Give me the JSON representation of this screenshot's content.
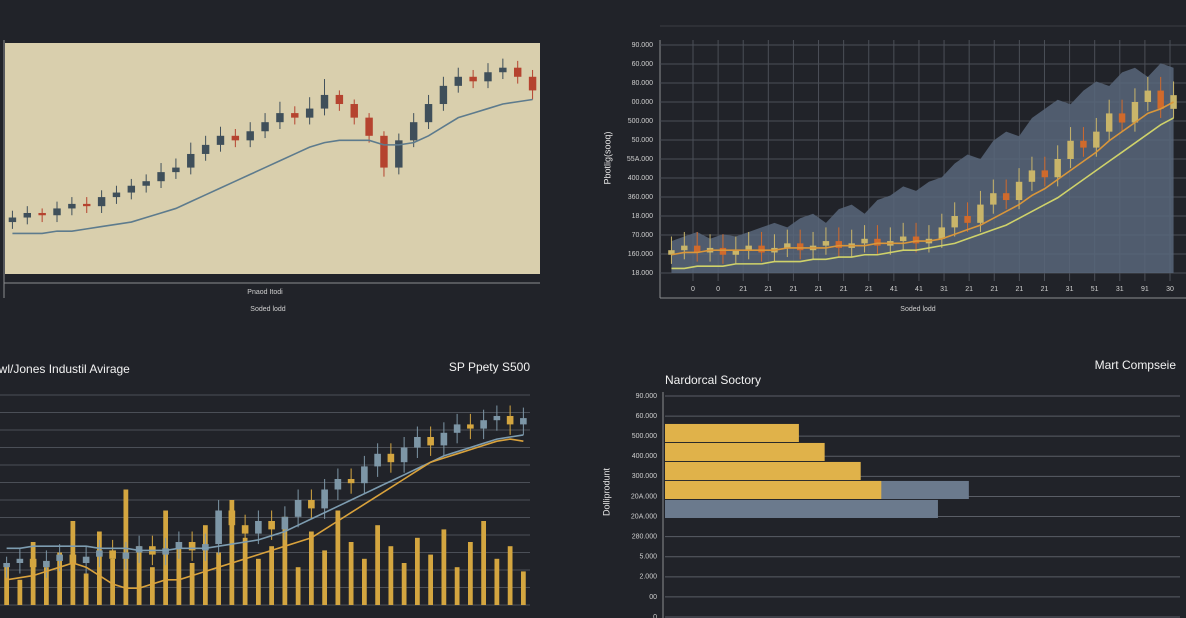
{
  "chart_data": [
    {
      "type": "candlestick",
      "xlabel": "Pnaod Itodi",
      "x_sublabel": "Soded lodd",
      "ylim": [
        0,
        100
      ],
      "background": "#d9cfad",
      "up_color": "#3f4f5a",
      "down_color": "#b5432f",
      "open": [
        22,
        24,
        26,
        25,
        28,
        30,
        29,
        33,
        35,
        38,
        40,
        44,
        46,
        52,
        56,
        60,
        58,
        62,
        66,
        70,
        68,
        72,
        78,
        74,
        68,
        60,
        46,
        58,
        66,
        74,
        82,
        86,
        84,
        88,
        90,
        86
      ],
      "high": [
        27,
        29,
        28,
        31,
        33,
        33,
        36,
        38,
        41,
        43,
        48,
        50,
        57,
        60,
        64,
        63,
        66,
        70,
        75,
        73,
        77,
        85,
        80,
        76,
        70,
        62,
        61,
        70,
        78,
        86,
        90,
        89,
        92,
        94,
        93,
        89
      ],
      "low": [
        19,
        21,
        22,
        22,
        25,
        26,
        26,
        30,
        32,
        35,
        37,
        41,
        43,
        49,
        53,
        55,
        55,
        59,
        63,
        65,
        65,
        69,
        71,
        65,
        57,
        42,
        43,
        55,
        63,
        71,
        79,
        81,
        81,
        85,
        83,
        76
      ],
      "close": [
        24,
        26,
        25,
        28,
        30,
        29,
        33,
        35,
        38,
        40,
        44,
        46,
        52,
        56,
        60,
        58,
        62,
        66,
        70,
        68,
        72,
        78,
        74,
        68,
        60,
        46,
        58,
        66,
        74,
        82,
        86,
        84,
        88,
        90,
        86,
        80
      ],
      "lines": [
        {
          "color": "#5d7b8d",
          "values": [
            17,
            17,
            17,
            18,
            18,
            19,
            20,
            21,
            22,
            24,
            26,
            28,
            31,
            34,
            37,
            40,
            43,
            46,
            49,
            52,
            55,
            57,
            58,
            58,
            58,
            56,
            56,
            57,
            60,
            64,
            68,
            70,
            72,
            74,
            75,
            76
          ]
        }
      ]
    },
    {
      "type": "candlestick",
      "ylabel": "Pbotlig(sooq)",
      "xlabel": "Soded lodd",
      "ylim": [
        0,
        100
      ],
      "grid": true,
      "ytick_labels": [
        "90.000",
        "60.000",
        "80.000",
        "00.000",
        "500.000",
        "50.000",
        "55A.000",
        "400.000",
        "360.000",
        "18.000",
        "70.000",
        "160.000",
        "18.000"
      ],
      "xtick_labels": [
        "0",
        "0",
        "21",
        "21",
        "21",
        "21",
        "21",
        "21",
        "41",
        "41",
        "31",
        "21",
        "21",
        "21",
        "21",
        "31",
        "51",
        "31",
        "91",
        "30"
      ],
      "up_color": "#c9b56a",
      "down_color": "#d06a2c",
      "area": {
        "color": "#58667a",
        "values": [
          14,
          16,
          18,
          15,
          17,
          16,
          18,
          20,
          22,
          20,
          24,
          26,
          22,
          28,
          30,
          26,
          32,
          34,
          38,
          36,
          40,
          42,
          48,
          52,
          50,
          58,
          62,
          60,
          68,
          72,
          76,
          74,
          80,
          84,
          82,
          88,
          90,
          86,
          92,
          90
        ]
      },
      "open": [
        8,
        10,
        12,
        9,
        11,
        8,
        10,
        12,
        9,
        11,
        13,
        10,
        12,
        14,
        11,
        13,
        15,
        12,
        14,
        16,
        13,
        15,
        20,
        25,
        22,
        30,
        35,
        32,
        40,
        45,
        42,
        50,
        58,
        55,
        62,
        70,
        66,
        75,
        80,
        72
      ],
      "high": [
        16,
        18,
        18,
        17,
        17,
        16,
        18,
        18,
        17,
        19,
        19,
        18,
        20,
        20,
        19,
        21,
        21,
        20,
        22,
        22,
        21,
        26,
        31,
        31,
        36,
        41,
        41,
        46,
        51,
        51,
        56,
        64,
        64,
        68,
        76,
        76,
        81,
        86,
        86,
        84
      ],
      "low": [
        4,
        6,
        5,
        5,
        4,
        4,
        6,
        5,
        5,
        7,
        6,
        6,
        8,
        7,
        7,
        9,
        8,
        8,
        10,
        9,
        9,
        11,
        16,
        18,
        18,
        26,
        28,
        28,
        36,
        38,
        38,
        46,
        51,
        51,
        58,
        62,
        62,
        71,
        68,
        68
      ],
      "close": [
        10,
        12,
        9,
        11,
        8,
        10,
        12,
        9,
        11,
        13,
        10,
        12,
        14,
        11,
        13,
        15,
        12,
        14,
        16,
        13,
        15,
        20,
        25,
        22,
        30,
        35,
        32,
        40,
        45,
        42,
        50,
        58,
        55,
        62,
        70,
        66,
        75,
        80,
        72,
        78
      ],
      "lines": [
        {
          "color": "#d9963a",
          "values": [
            8,
            9,
            9,
            10,
            10,
            10,
            10,
            10,
            10,
            11,
            11,
            11,
            11,
            12,
            12,
            12,
            13,
            13,
            13,
            14,
            14,
            15,
            17,
            19,
            21,
            24,
            27,
            30,
            34,
            37,
            41,
            45,
            49,
            53,
            58,
            62,
            66,
            70,
            72,
            75
          ]
        },
        {
          "color": "#cfd26a",
          "values": [
            2,
            2,
            3,
            3,
            3,
            4,
            4,
            4,
            5,
            5,
            5,
            6,
            6,
            7,
            7,
            8,
            8,
            9,
            10,
            10,
            11,
            12,
            13,
            15,
            17,
            19,
            21,
            24,
            27,
            30,
            33,
            37,
            41,
            45,
            49,
            53,
            57,
            61,
            65,
            68
          ]
        }
      ]
    },
    {
      "type": "candlestick",
      "title": "owl/Jones Industil Avirage",
      "subtitle": "SP Ppety S500",
      "ylim": [
        0,
        100
      ],
      "grid": true,
      "up_color": "#7d96a6",
      "down_color": "#d4a640",
      "volume_color": "#d4a640",
      "volume": [
        20,
        12,
        30,
        18,
        25,
        40,
        15,
        35,
        22,
        55,
        28,
        18,
        45,
        30,
        20,
        38,
        25,
        50,
        32,
        22,
        28,
        42,
        18,
        35,
        26,
        45,
        30,
        22,
        38,
        28,
        20,
        32,
        24,
        36,
        18,
        30,
        40,
        22,
        28,
        16
      ],
      "open": [
        18,
        20,
        22,
        18,
        21,
        24,
        20,
        23,
        26,
        22,
        25,
        28,
        24,
        27,
        30,
        26,
        29,
        45,
        38,
        34,
        40,
        36,
        42,
        50,
        46,
        55,
        60,
        58,
        66,
        72,
        68,
        75,
        80,
        76,
        82,
        86,
        84,
        88,
        90,
        86
      ],
      "high": [
        23,
        27,
        27,
        26,
        29,
        29,
        28,
        31,
        31,
        30,
        33,
        33,
        32,
        35,
        35,
        34,
        50,
        50,
        43,
        45,
        45,
        47,
        55,
        55,
        60,
        65,
        65,
        71,
        77,
        77,
        80,
        85,
        85,
        87,
        91,
        91,
        93,
        95,
        95,
        94
      ],
      "low": [
        13,
        15,
        13,
        13,
        16,
        15,
        15,
        18,
        17,
        17,
        20,
        19,
        19,
        22,
        21,
        21,
        24,
        33,
        29,
        29,
        31,
        31,
        37,
        41,
        41,
        50,
        53,
        53,
        61,
        63,
        63,
        70,
        71,
        71,
        77,
        79,
        79,
        83,
        81,
        81
      ],
      "close": [
        20,
        22,
        18,
        21,
        24,
        20,
        23,
        26,
        22,
        25,
        28,
        24,
        27,
        30,
        26,
        29,
        45,
        38,
        34,
        40,
        36,
        42,
        50,
        46,
        55,
        60,
        58,
        66,
        72,
        68,
        75,
        80,
        76,
        82,
        86,
        84,
        88,
        90,
        86,
        89
      ],
      "lines": [
        {
          "color": "#7d9cb0",
          "values": [
            27,
            27,
            28,
            28,
            28,
            28,
            28,
            27,
            27,
            27,
            26,
            26,
            26,
            27,
            27,
            27,
            28,
            29,
            30,
            31,
            33,
            35,
            38,
            41,
            44,
            47,
            50,
            53,
            56,
            59,
            62,
            65,
            68,
            71,
            73,
            75,
            77,
            79,
            80,
            81
          ]
        },
        {
          "color": "#d9a23c",
          "values": [
            12,
            13,
            14,
            16,
            18,
            20,
            18,
            14,
            10,
            8,
            8,
            10,
            12,
            12,
            14,
            16,
            18,
            20,
            22,
            24,
            26,
            28,
            30,
            32,
            36,
            40,
            44,
            48,
            52,
            56,
            60,
            64,
            68,
            70,
            72,
            74,
            76,
            78,
            79,
            78
          ]
        }
      ]
    },
    {
      "type": "bar",
      "orientation": "horizontal",
      "title": "Mart Compseie",
      "subtitle": "Nardorcal Soctory",
      "ylabel": "Dolliprodunt",
      "xlim": [
        0,
        100
      ],
      "grid": true,
      "ytick_labels": [
        "90.000",
        "60.000",
        "500.000",
        "400.000",
        "300.000",
        "20A.000",
        "20A.000",
        "280.000",
        "5.000",
        "2.000",
        "00",
        "0"
      ],
      "categories": [
        null,
        null,
        null,
        null,
        null
      ],
      "series": [
        {
          "color": "#6b7a8d",
          "values": [
            null,
            null,
            null,
            59,
            53
          ]
        },
        {
          "color": "#e0b24a",
          "values": [
            26,
            31,
            38,
            42,
            null
          ]
        }
      ]
    }
  ]
}
